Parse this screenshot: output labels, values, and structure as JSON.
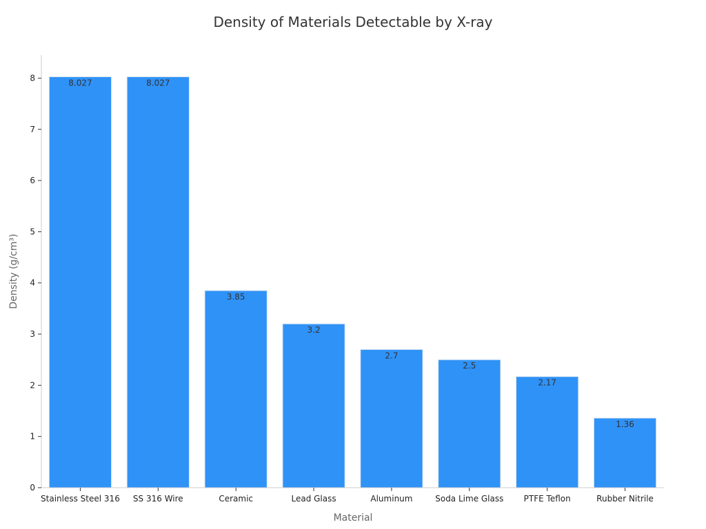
{
  "chart_data": {
    "type": "bar",
    "title": "Density of Materials Detectable by X-ray",
    "xlabel": "Material",
    "ylabel": "Density (g/cm³)",
    "categories": [
      "Stainless Steel 316",
      "SS 316 Wire",
      "Ceramic",
      "Lead Glass",
      "Aluminum",
      "Soda Lime Glass",
      "PTFE Teflon",
      "Rubber Nitrile"
    ],
    "values": [
      8.027,
      8.027,
      3.85,
      3.2,
      2.7,
      2.5,
      2.17,
      1.36
    ],
    "value_labels": [
      "8.027",
      "8.027",
      "3.85",
      "3.2",
      "2.7",
      "2.5",
      "2.17",
      "1.36"
    ],
    "y_ticks": [
      "0",
      "1",
      "2",
      "3",
      "4",
      "5",
      "6",
      "7",
      "8"
    ],
    "ylim": [
      0,
      8.45
    ],
    "grid": false,
    "legend": "none",
    "bar_color": "#2f92f7",
    "bar_edge_color": "#dfe8f2"
  }
}
